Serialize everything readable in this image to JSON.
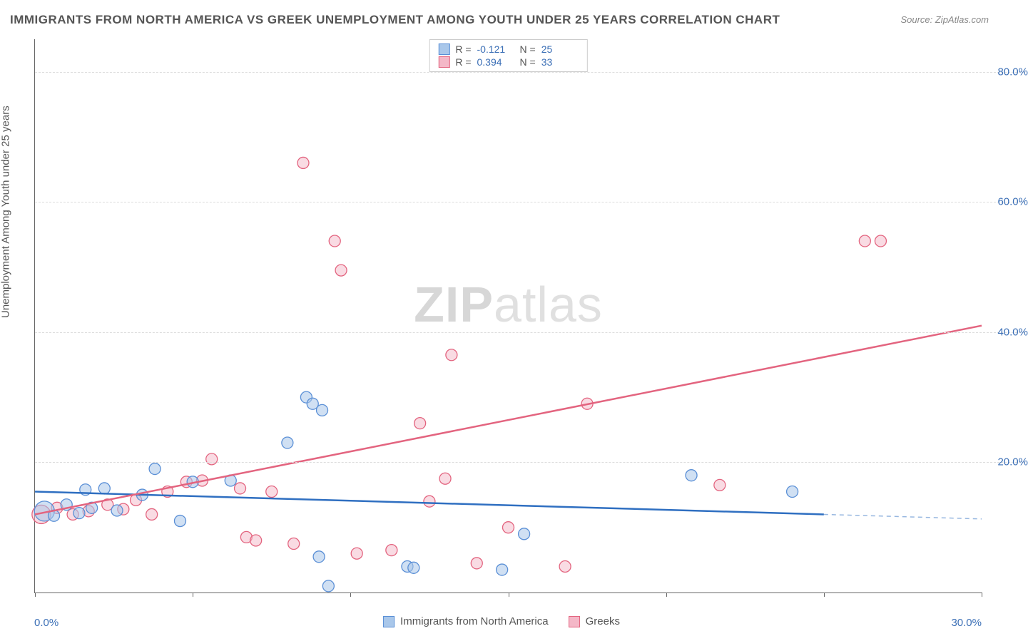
{
  "title": "IMMIGRANTS FROM NORTH AMERICA VS GREEK UNEMPLOYMENT AMONG YOUTH UNDER 25 YEARS CORRELATION CHART",
  "source": "Source: ZipAtlas.com",
  "watermark_a": "ZIP",
  "watermark_b": "atlas",
  "y_axis_title": "Unemployment Among Youth under 25 years",
  "chart": {
    "type": "scatter",
    "xlim": [
      0,
      30
    ],
    "ylim": [
      0,
      85
    ],
    "x_ticks": [
      0,
      5,
      10,
      15,
      20,
      25,
      30
    ],
    "x_label_min": "0.0%",
    "x_label_max": "30.0%",
    "y_gridlines": [
      {
        "v": 20,
        "label": "20.0%"
      },
      {
        "v": 40,
        "label": "40.0%"
      },
      {
        "v": 60,
        "label": "60.0%"
      },
      {
        "v": 80,
        "label": "80.0%"
      }
    ],
    "background_color": "#ffffff",
    "grid_color": "#dddddd",
    "series": [
      {
        "key": "immigrants",
        "label": "Immigrants from North America",
        "marker_fill": "#a9c7ea",
        "marker_stroke": "#5a8fd6",
        "fill_opacity": 0.55,
        "marker_r": 8,
        "line_color": "#2f6fc1",
        "line_width": 2.5,
        "R": "-0.121",
        "N": "25",
        "trend": {
          "x1": 0,
          "y1": 15.5,
          "x2": 25,
          "y2": 12.0,
          "x2_ext": 30,
          "y2_ext": 11.3
        },
        "points": [
          {
            "x": 0.3,
            "y": 12.5,
            "r": 14
          },
          {
            "x": 0.6,
            "y": 11.8
          },
          {
            "x": 1.0,
            "y": 13.5
          },
          {
            "x": 1.4,
            "y": 12.2
          },
          {
            "x": 1.6,
            "y": 15.8
          },
          {
            "x": 1.8,
            "y": 13.0
          },
          {
            "x": 2.2,
            "y": 16.0
          },
          {
            "x": 2.6,
            "y": 12.6
          },
          {
            "x": 3.4,
            "y": 15.0
          },
          {
            "x": 3.8,
            "y": 19.0
          },
          {
            "x": 4.6,
            "y": 11.0
          },
          {
            "x": 5.0,
            "y": 17.0
          },
          {
            "x": 6.2,
            "y": 17.2
          },
          {
            "x": 8.0,
            "y": 23.0
          },
          {
            "x": 8.6,
            "y": 30.0
          },
          {
            "x": 8.8,
            "y": 29.0
          },
          {
            "x": 9.1,
            "y": 28.0
          },
          {
            "x": 9.0,
            "y": 5.5
          },
          {
            "x": 9.3,
            "y": 1.0
          },
          {
            "x": 11.8,
            "y": 4.0
          },
          {
            "x": 12.0,
            "y": 3.8
          },
          {
            "x": 14.8,
            "y": 3.5
          },
          {
            "x": 15.5,
            "y": 9.0
          },
          {
            "x": 20.8,
            "y": 18.0
          },
          {
            "x": 24.0,
            "y": 15.5
          }
        ]
      },
      {
        "key": "greeks",
        "label": "Greeks",
        "marker_fill": "#f4b7c7",
        "marker_stroke": "#e3647f",
        "fill_opacity": 0.5,
        "marker_r": 8,
        "line_color": "#e3647f",
        "line_width": 2.5,
        "R": "0.394",
        "N": "33",
        "trend": {
          "x1": 0,
          "y1": 12.0,
          "x2": 30,
          "y2": 41.0
        },
        "points": [
          {
            "x": 0.2,
            "y": 12.0,
            "r": 13
          },
          {
            "x": 0.7,
            "y": 13.0
          },
          {
            "x": 1.2,
            "y": 12.0
          },
          {
            "x": 1.7,
            "y": 12.5
          },
          {
            "x": 2.3,
            "y": 13.5
          },
          {
            "x": 2.8,
            "y": 12.8
          },
          {
            "x": 3.2,
            "y": 14.2
          },
          {
            "x": 3.7,
            "y": 12.0
          },
          {
            "x": 4.2,
            "y": 15.5
          },
          {
            "x": 4.8,
            "y": 17.0
          },
          {
            "x": 5.3,
            "y": 17.2
          },
          {
            "x": 5.6,
            "y": 20.5
          },
          {
            "x": 6.5,
            "y": 16.0
          },
          {
            "x": 6.7,
            "y": 8.5
          },
          {
            "x": 7.0,
            "y": 8.0
          },
          {
            "x": 7.5,
            "y": 15.5
          },
          {
            "x": 8.2,
            "y": 7.5
          },
          {
            "x": 8.5,
            "y": 66.0
          },
          {
            "x": 9.5,
            "y": 54.0
          },
          {
            "x": 9.7,
            "y": 49.5
          },
          {
            "x": 10.2,
            "y": 6.0
          },
          {
            "x": 11.3,
            "y": 6.5
          },
          {
            "x": 12.2,
            "y": 26.0
          },
          {
            "x": 12.5,
            "y": 14.0
          },
          {
            "x": 13.0,
            "y": 17.5
          },
          {
            "x": 13.2,
            "y": 36.5
          },
          {
            "x": 14.0,
            "y": 4.5
          },
          {
            "x": 15.0,
            "y": 10.0
          },
          {
            "x": 16.8,
            "y": 4.0
          },
          {
            "x": 17.5,
            "y": 29.0
          },
          {
            "x": 21.7,
            "y": 16.5
          },
          {
            "x": 26.3,
            "y": 54.0
          },
          {
            "x": 26.8,
            "y": 54.0
          }
        ]
      }
    ]
  },
  "legend_top": {
    "r_label": "R =",
    "n_label": "N ="
  }
}
